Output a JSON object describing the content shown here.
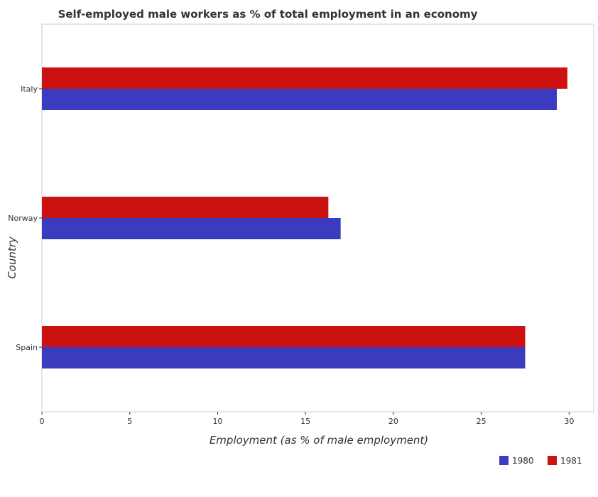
{
  "chart_data": {
    "type": "bar",
    "orientation": "horizontal",
    "title": "Self-employed male workers as % of total employment in an economy",
    "xlabel": "Employment (as % of male employment)",
    "ylabel": "Country",
    "categories": [
      "Italy",
      "Norway",
      "Spain"
    ],
    "series": [
      {
        "name": "1980",
        "color": "#3b3bbf",
        "values": [
          29.3,
          17.0,
          27.5
        ]
      },
      {
        "name": "1981",
        "color": "#cc1111",
        "values": [
          29.9,
          16.3,
          27.5
        ]
      }
    ],
    "xlim": [
      0,
      31.4
    ],
    "xticks": [
      0,
      5,
      10,
      15,
      20,
      25,
      30
    ],
    "xtick_labels": [
      "0",
      "5",
      "10",
      "15",
      "20",
      "25",
      "30"
    ],
    "legend_position": "bottom-right",
    "grid": false
  }
}
